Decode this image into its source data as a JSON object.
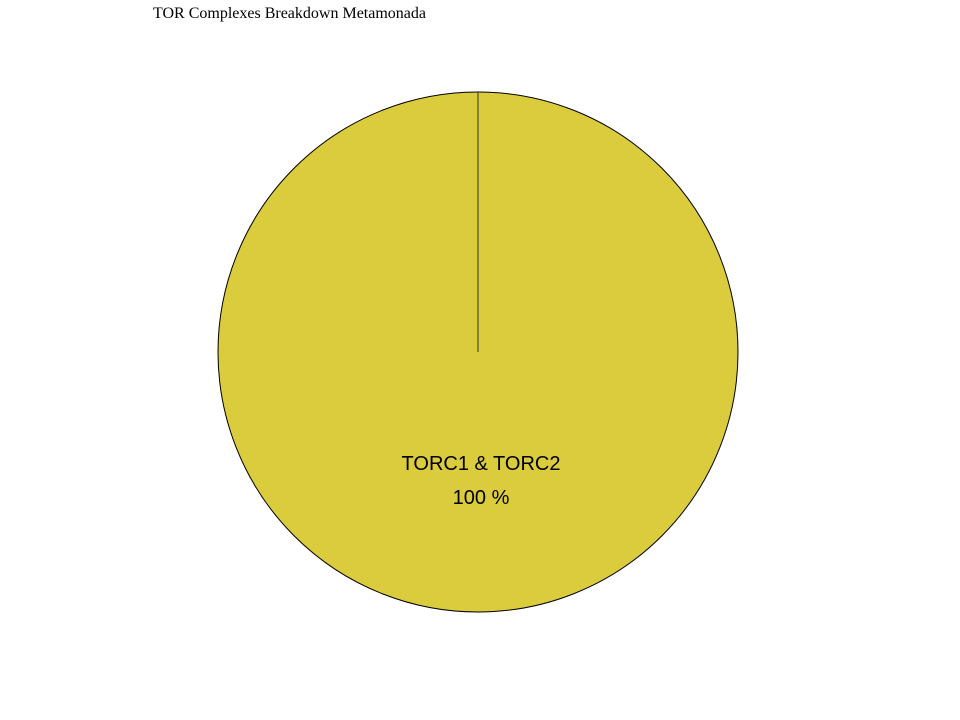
{
  "chart_data": {
    "type": "pie",
    "title": "TOR Complexes Breakdown Metamonada",
    "slices": [
      {
        "label": "TORC1 & TORC2",
        "value": 100,
        "percent_label": "100 %",
        "color": "#dbcc3e"
      }
    ],
    "legend": "none"
  }
}
